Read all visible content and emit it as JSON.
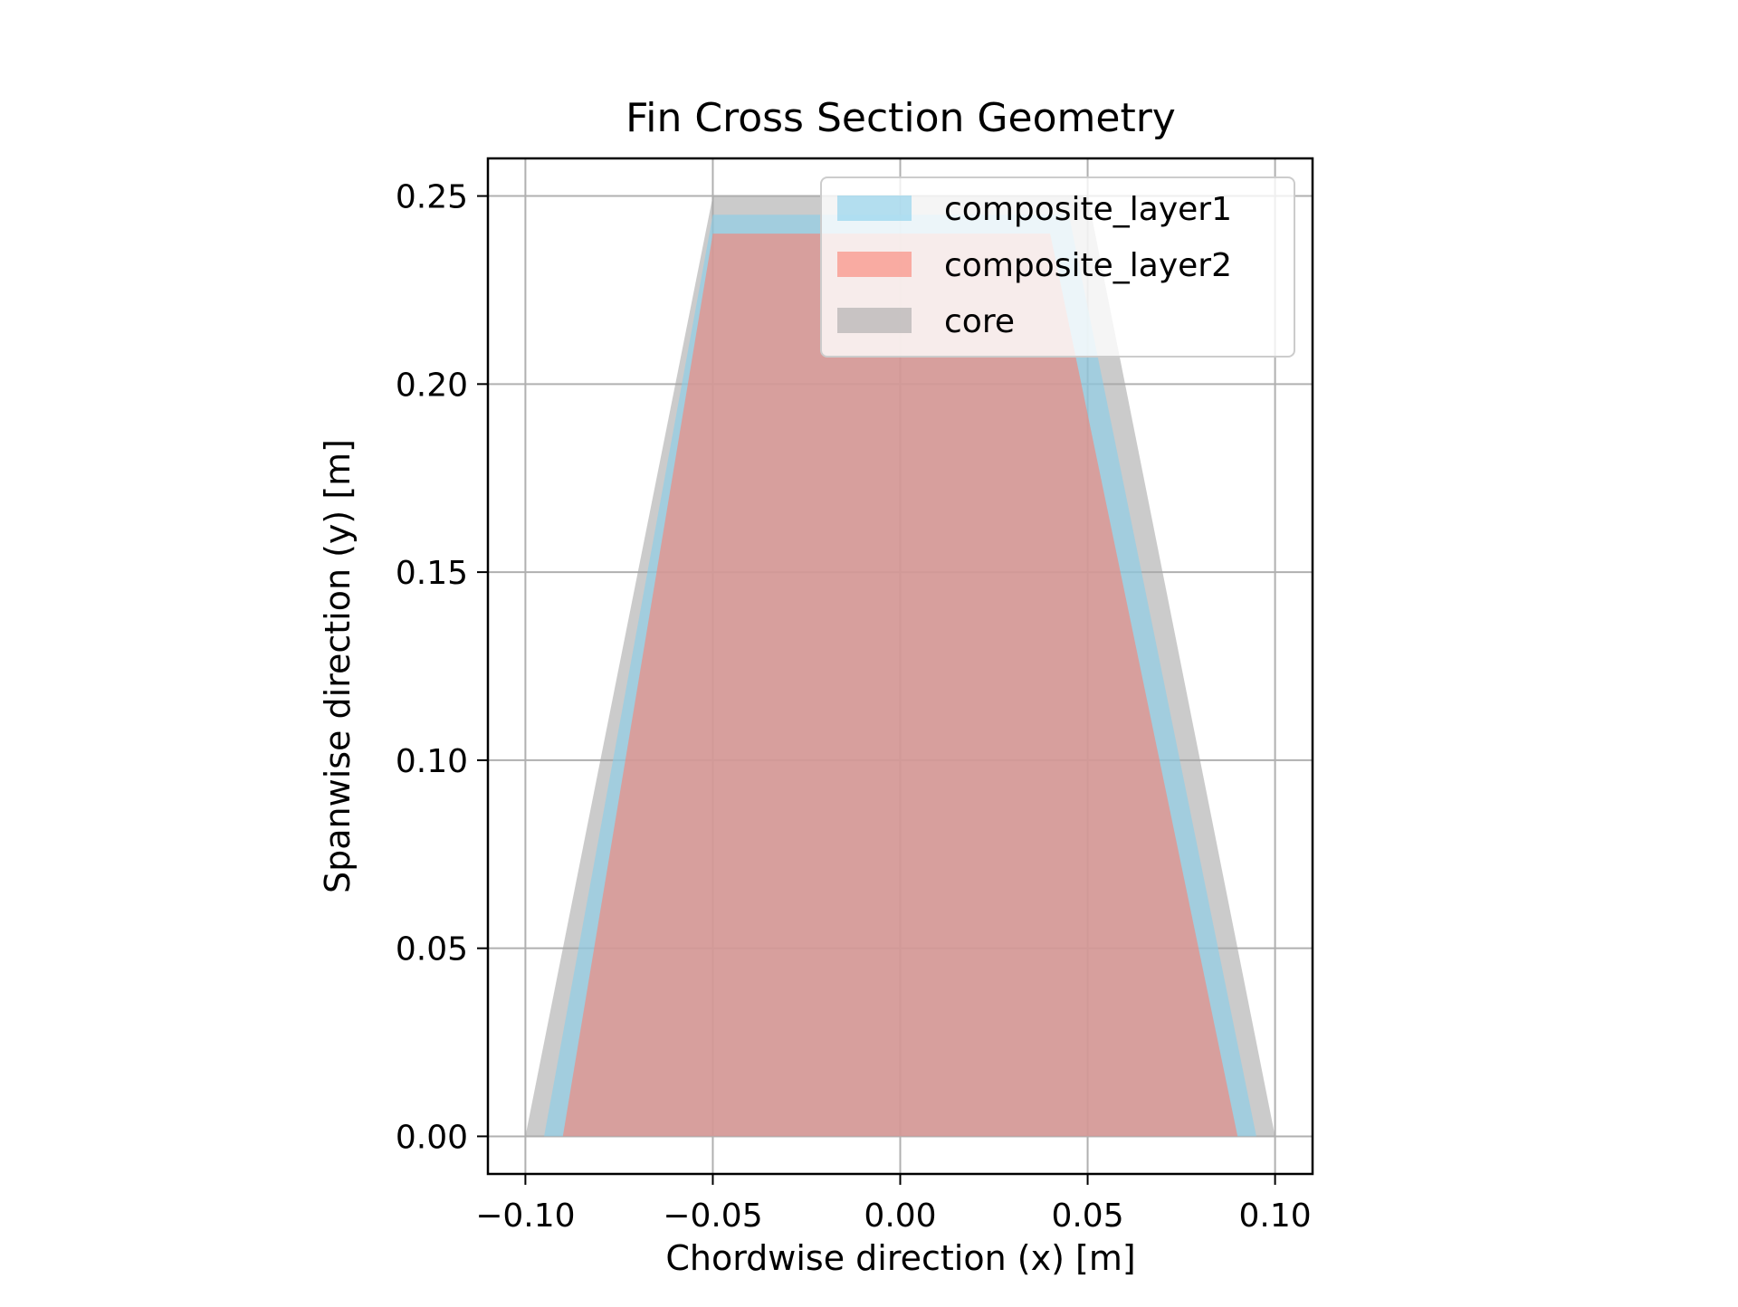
{
  "chart_data": {
    "type": "area",
    "title": "Fin Cross Section Geometry",
    "xlabel": "Chordwise direction (x) [m]",
    "ylabel": "Spanwise direction (y) [m]",
    "xlim": [
      -0.11,
      0.11
    ],
    "ylim": [
      -0.01,
      0.26
    ],
    "xticks": [
      -0.1,
      -0.05,
      0.0,
      0.05,
      0.1
    ],
    "xtick_labels": [
      "−0.10",
      "−0.05",
      "0.00",
      "0.05",
      "0.10"
    ],
    "yticks": [
      0.0,
      0.05,
      0.1,
      0.15,
      0.2,
      0.25
    ],
    "ytick_labels": [
      "0.00",
      "0.05",
      "0.10",
      "0.15",
      "0.20",
      "0.25"
    ],
    "grid": true,
    "legend_position": "upper right",
    "series": [
      {
        "name": "core",
        "color": "#a9a9a9",
        "opacity": 0.6,
        "polygon": [
          [
            -0.1,
            0.0
          ],
          [
            0.1,
            0.0
          ],
          [
            0.05,
            0.25
          ],
          [
            -0.05,
            0.25
          ]
        ]
      },
      {
        "name": "composite_layer1",
        "color": "#87ceeb",
        "opacity": 0.6,
        "polygon": [
          [
            -0.095,
            0.0
          ],
          [
            0.095,
            0.0
          ],
          [
            0.045,
            0.245
          ],
          [
            -0.05,
            0.245
          ]
        ]
      },
      {
        "name": "composite_layer2",
        "color": "#fa8072",
        "opacity": 0.6,
        "polygon": [
          [
            -0.09,
            0.0
          ],
          [
            0.09,
            0.0
          ],
          [
            0.04,
            0.24
          ],
          [
            -0.05,
            0.24
          ]
        ]
      }
    ],
    "legend_order": [
      "composite_layer1",
      "composite_layer2",
      "core"
    ]
  }
}
